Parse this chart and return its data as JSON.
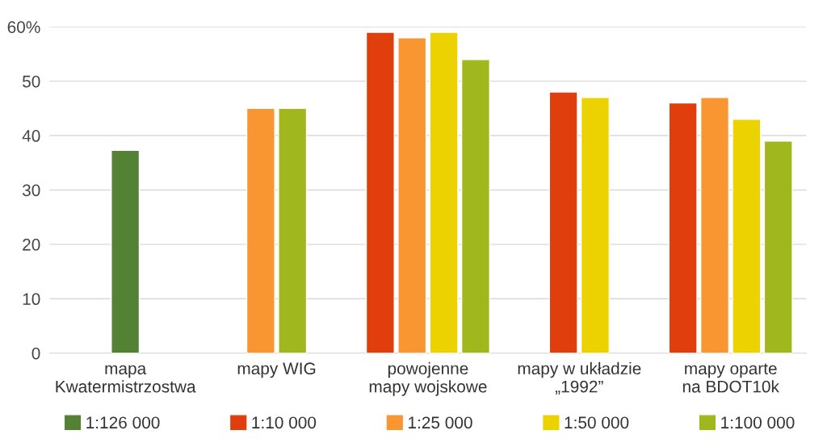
{
  "chart_data": {
    "type": "bar",
    "categories": [
      "mapa\nKwatermistrzostwa",
      "mapy WIG",
      "powojenne\nmapy wojskowe",
      "mapy w układzie\n„1992”",
      "mapy oparte\nna BDOT10k"
    ],
    "series": [
      {
        "name": "1:126 000",
        "color": "#548235",
        "values": [
          37.3,
          null,
          null,
          null,
          null
        ]
      },
      {
        "name": "1:10 000",
        "color": "#e03e0c",
        "values": [
          null,
          null,
          59,
          48,
          46
        ]
      },
      {
        "name": "1:25 000",
        "color": "#fa9632",
        "values": [
          null,
          45,
          58,
          null,
          47
        ]
      },
      {
        "name": "1:50 000",
        "color": "#ecd200",
        "values": [
          null,
          null,
          59,
          47,
          43
        ]
      },
      {
        "name": "1:100 000",
        "color": "#a0b81e",
        "values": [
          null,
          45,
          54,
          null,
          39
        ]
      }
    ],
    "ylim": [
      0,
      60
    ],
    "yticks": [
      0,
      10,
      20,
      30,
      40,
      50,
      {
        "value": 60,
        "label": "60%"
      }
    ],
    "grid": "y",
    "legend": "bottom"
  }
}
